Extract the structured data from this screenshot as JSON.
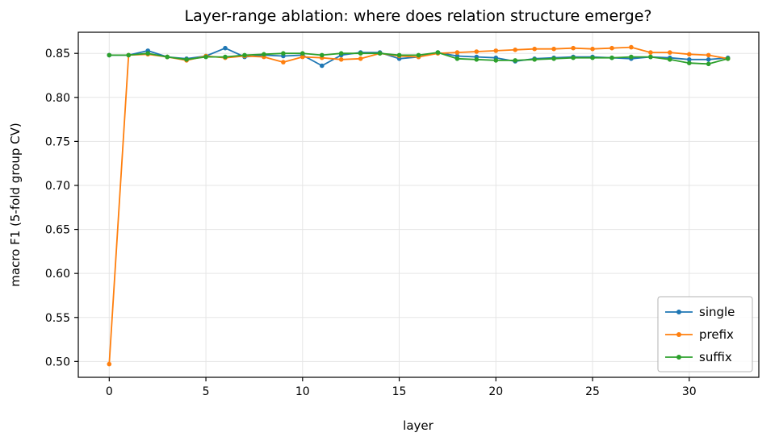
{
  "chart_data": {
    "type": "line",
    "title": "Layer-range ablation: where does relation structure emerge?",
    "xlabel": "layer",
    "ylabel": "macro F1 (5-fold group CV)",
    "grid": true,
    "legend_position": "lower right",
    "xlim": [
      -1.6,
      33.6
    ],
    "ylim": [
      0.482,
      0.874
    ],
    "xticks": [
      0,
      5,
      10,
      15,
      20,
      25,
      30
    ],
    "yticks": [
      0.5,
      0.55,
      0.6,
      0.65,
      0.7,
      0.75,
      0.8,
      0.85
    ],
    "ytick_labels": [
      "0.50",
      "0.55",
      "0.60",
      "0.65",
      "0.70",
      "0.75",
      "0.80",
      "0.85"
    ],
    "x": [
      0,
      1,
      2,
      3,
      4,
      5,
      6,
      7,
      8,
      9,
      10,
      11,
      12,
      13,
      14,
      15,
      16,
      17,
      18,
      19,
      20,
      21,
      22,
      23,
      24,
      25,
      26,
      27,
      28,
      29,
      30,
      31,
      32
    ],
    "series": [
      {
        "name": "single",
        "color": "#1f77b4",
        "values": [
          0.848,
          0.848,
          0.853,
          0.846,
          0.844,
          0.847,
          0.856,
          0.846,
          0.848,
          0.847,
          0.848,
          0.836,
          0.848,
          0.851,
          0.851,
          0.844,
          0.846,
          0.851,
          0.847,
          0.846,
          0.845,
          0.841,
          0.844,
          0.845,
          0.846,
          0.846,
          0.845,
          0.844,
          0.846,
          0.845,
          0.843,
          0.843,
          0.845
        ]
      },
      {
        "name": "prefix",
        "color": "#ff7f0e",
        "values": [
          0.497,
          0.848,
          0.849,
          0.846,
          0.842,
          0.847,
          0.845,
          0.847,
          0.846,
          0.84,
          0.846,
          0.845,
          0.843,
          0.844,
          0.85,
          0.847,
          0.846,
          0.85,
          0.851,
          0.852,
          0.853,
          0.854,
          0.855,
          0.855,
          0.856,
          0.855,
          0.856,
          0.857,
          0.851,
          0.851,
          0.849,
          0.848,
          0.844
        ]
      },
      {
        "name": "suffix",
        "color": "#2ca02c",
        "values": [
          0.848,
          0.848,
          0.85,
          0.846,
          0.843,
          0.846,
          0.846,
          0.848,
          0.849,
          0.85,
          0.85,
          0.848,
          0.85,
          0.85,
          0.85,
          0.848,
          0.848,
          0.851,
          0.844,
          0.843,
          0.842,
          0.842,
          0.843,
          0.844,
          0.845,
          0.845,
          0.845,
          0.846,
          0.846,
          0.843,
          0.839,
          0.838,
          0.844
        ]
      }
    ]
  }
}
